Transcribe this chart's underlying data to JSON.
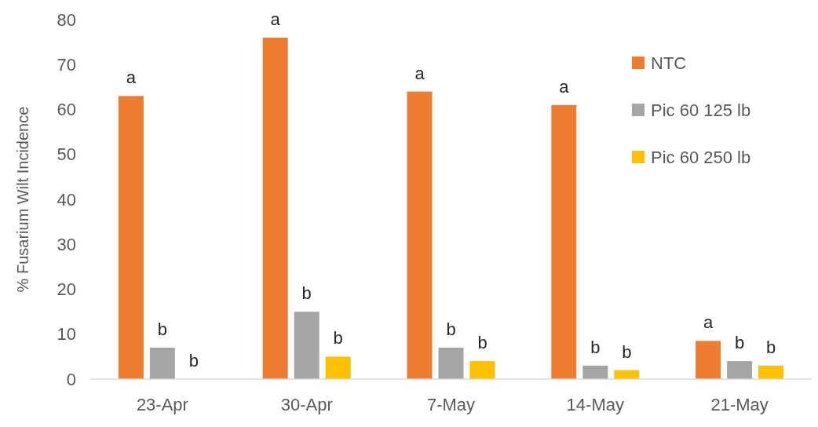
{
  "chart_data": {
    "type": "bar",
    "ylabel": "% Fusarium Wilt Incidence",
    "categories": [
      "23-Apr",
      "30-Apr",
      "7-May",
      "14-May",
      "21-May"
    ],
    "series": [
      {
        "name": "NTC",
        "color": "#ed7d31",
        "values": [
          63,
          76,
          64,
          61,
          8.5
        ]
      },
      {
        "name": "Pic 60 125 lb",
        "color": "#a5a5a5",
        "values": [
          7,
          15,
          7,
          3,
          4
        ]
      },
      {
        "name": "Pic 60 250 lb",
        "color": "#ffc000",
        "values": [
          0,
          5,
          4,
          2,
          3
        ]
      }
    ],
    "ylim": [
      0,
      80
    ],
    "yticks": [
      0,
      10,
      20,
      30,
      40,
      50,
      60,
      70,
      80
    ],
    "grid": false,
    "legend": "top right",
    "annotations": [
      "a",
      "b",
      "b",
      "a",
      "b",
      "b",
      "a",
      "b",
      "b",
      "a",
      "b",
      "b",
      "a",
      "b",
      "b"
    ]
  }
}
